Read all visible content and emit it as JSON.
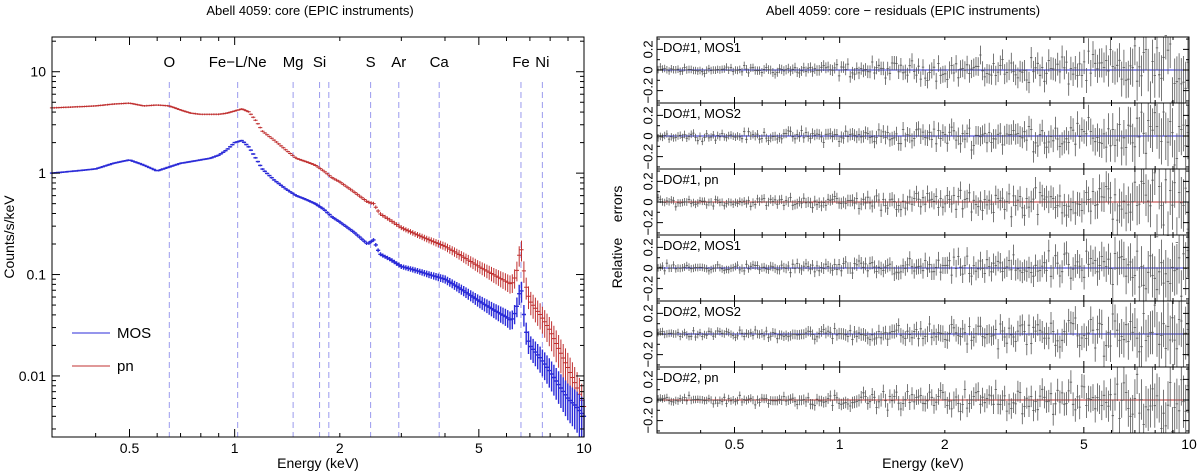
{
  "chart_data": [
    {
      "type": "line",
      "title": "Abell 4059: core (EPIC instruments)",
      "xlabel": "Energy (keV)",
      "ylabel": "Counts/s/keV",
      "xscale": "log",
      "yscale": "log",
      "xlim": [
        0.3,
        10
      ],
      "ylim": [
        0.0025,
        22
      ],
      "xticks": [
        {
          "v": 0.5,
          "label": "0.5"
        },
        {
          "v": 1,
          "label": "1"
        },
        {
          "v": 2,
          "label": "2"
        },
        {
          "v": 5,
          "label": "5"
        },
        {
          "v": 10,
          "label": "10"
        }
      ],
      "yticks": [
        {
          "v": 0.01,
          "label": "0.01"
        },
        {
          "v": 0.1,
          "label": "0.1"
        },
        {
          "v": 1,
          "label": "1"
        },
        {
          "v": 10,
          "label": "10"
        }
      ],
      "legend": {
        "placement": "bottom-left",
        "entries": [
          {
            "name": "MOS",
            "color": "#2b2bd8"
          },
          {
            "name": "pn",
            "color": "#c03030"
          }
        ]
      },
      "lines": [
        {
          "label": "O",
          "energy": 0.65
        },
        {
          "label": "Fe−L/Ne",
          "energy": 1.02
        },
        {
          "label": "Mg",
          "energy": 1.47
        },
        {
          "label": "Si",
          "energy": 1.75
        },
        {
          "label": "",
          "energy": 1.86
        },
        {
          "label": "S",
          "energy": 2.45
        },
        {
          "label": "Ar",
          "energy": 2.95
        },
        {
          "label": "Ca",
          "energy": 3.85
        },
        {
          "label": "Fe",
          "energy": 6.6
        },
        {
          "label": "Ni",
          "energy": 7.6
        }
      ],
      "series": [
        {
          "name": "pn",
          "color": "#c03030",
          "x": [
            0.3,
            0.35,
            0.4,
            0.45,
            0.5,
            0.55,
            0.6,
            0.65,
            0.7,
            0.75,
            0.8,
            0.85,
            0.9,
            0.95,
            1.0,
            1.05,
            1.1,
            1.15,
            1.2,
            1.3,
            1.4,
            1.5,
            1.6,
            1.7,
            1.8,
            1.9,
            2.0,
            2.2,
            2.4,
            2.5,
            2.6,
            2.8,
            3.0,
            3.3,
            3.6,
            4.0,
            4.5,
            5.0,
            5.5,
            6.0,
            6.2,
            6.4,
            6.6,
            6.7,
            6.85,
            7.0,
            7.5,
            8.0,
            8.5,
            9.0,
            9.5,
            10
          ],
          "y": [
            4.4,
            4.5,
            4.6,
            4.8,
            4.9,
            4.6,
            4.7,
            4.6,
            4.2,
            3.9,
            3.8,
            3.8,
            3.8,
            3.9,
            4.1,
            4.3,
            4.0,
            3.3,
            2.6,
            2.1,
            1.7,
            1.4,
            1.3,
            1.2,
            1.05,
            0.9,
            0.82,
            0.65,
            0.52,
            0.5,
            0.4,
            0.34,
            0.29,
            0.25,
            0.22,
            0.19,
            0.15,
            0.12,
            0.1,
            0.085,
            0.08,
            0.1,
            0.2,
            0.12,
            0.07,
            0.055,
            0.04,
            0.028,
            0.018,
            0.012,
            0.008,
            0.005
          ]
        },
        {
          "name": "MOS",
          "color": "#2b2bd8",
          "x": [
            0.3,
            0.35,
            0.4,
            0.45,
            0.5,
            0.55,
            0.6,
            0.65,
            0.7,
            0.75,
            0.8,
            0.85,
            0.9,
            0.95,
            1.0,
            1.05,
            1.1,
            1.15,
            1.2,
            1.3,
            1.4,
            1.5,
            1.6,
            1.7,
            1.8,
            1.9,
            2.0,
            2.2,
            2.4,
            2.5,
            2.6,
            2.8,
            3.0,
            3.3,
            3.6,
            4.0,
            4.5,
            5.0,
            5.5,
            6.0,
            6.2,
            6.4,
            6.6,
            6.7,
            6.85,
            7.0,
            7.5,
            8.0,
            8.5,
            9.0,
            9.5,
            10
          ],
          "y": [
            1.0,
            1.05,
            1.1,
            1.25,
            1.35,
            1.2,
            1.05,
            1.15,
            1.25,
            1.3,
            1.35,
            1.4,
            1.5,
            1.7,
            2.0,
            2.1,
            1.8,
            1.4,
            1.1,
            0.85,
            0.7,
            0.6,
            0.55,
            0.5,
            0.44,
            0.37,
            0.33,
            0.26,
            0.2,
            0.22,
            0.16,
            0.14,
            0.12,
            0.11,
            0.1,
            0.09,
            0.07,
            0.055,
            0.045,
            0.038,
            0.035,
            0.045,
            0.08,
            0.045,
            0.025,
            0.02,
            0.015,
            0.011,
            0.008,
            0.006,
            0.005,
            0.004
          ]
        }
      ]
    },
    {
      "type": "scatter",
      "title": "Abell 4059: core − residuals (EPIC instruments)",
      "xlabel": "Energy (keV)",
      "ylabel": "Relative    errors",
      "xscale": "log",
      "xlim": [
        0.3,
        10
      ],
      "xticks": [
        {
          "v": 0.5,
          "label": "0.5"
        },
        {
          "v": 1,
          "label": "1"
        },
        {
          "v": 2,
          "label": "2"
        },
        {
          "v": 5,
          "label": "5"
        },
        {
          "v": 10,
          "label": "10"
        }
      ],
      "panel_ylim": [
        -0.32,
        0.32
      ],
      "panel_yticks": [
        {
          "v": 0.2,
          "label": "0.2"
        },
        {
          "v": 0.0,
          "label": "0"
        },
        {
          "v": -0.2,
          "label": "−0.2"
        }
      ],
      "panels": [
        {
          "label": "DO#1, MOS1",
          "ref_color": "#2b2bd8"
        },
        {
          "label": "DO#1, MOS2",
          "ref_color": "#2b2bd8"
        },
        {
          "label": "DO#1, pn",
          "ref_color": "#c03030"
        },
        {
          "label": "DO#2, MOS1",
          "ref_color": "#2b2bd8"
        },
        {
          "label": "DO#2, MOS2",
          "ref_color": "#2b2bd8"
        },
        {
          "label": "DO#2, pn",
          "ref_color": "#c03030"
        }
      ],
      "residual_scatter": {
        "x": [
          0.3,
          0.5,
          1.0,
          2.0,
          5.0,
          10
        ],
        "amplitude": [
          0.03,
          0.03,
          0.05,
          0.08,
          0.12,
          0.28
        ]
      }
    }
  ],
  "style": {
    "axis_color": "#000000",
    "line_marker_color": "#9a9aee",
    "residual_point_color": "#555555"
  }
}
